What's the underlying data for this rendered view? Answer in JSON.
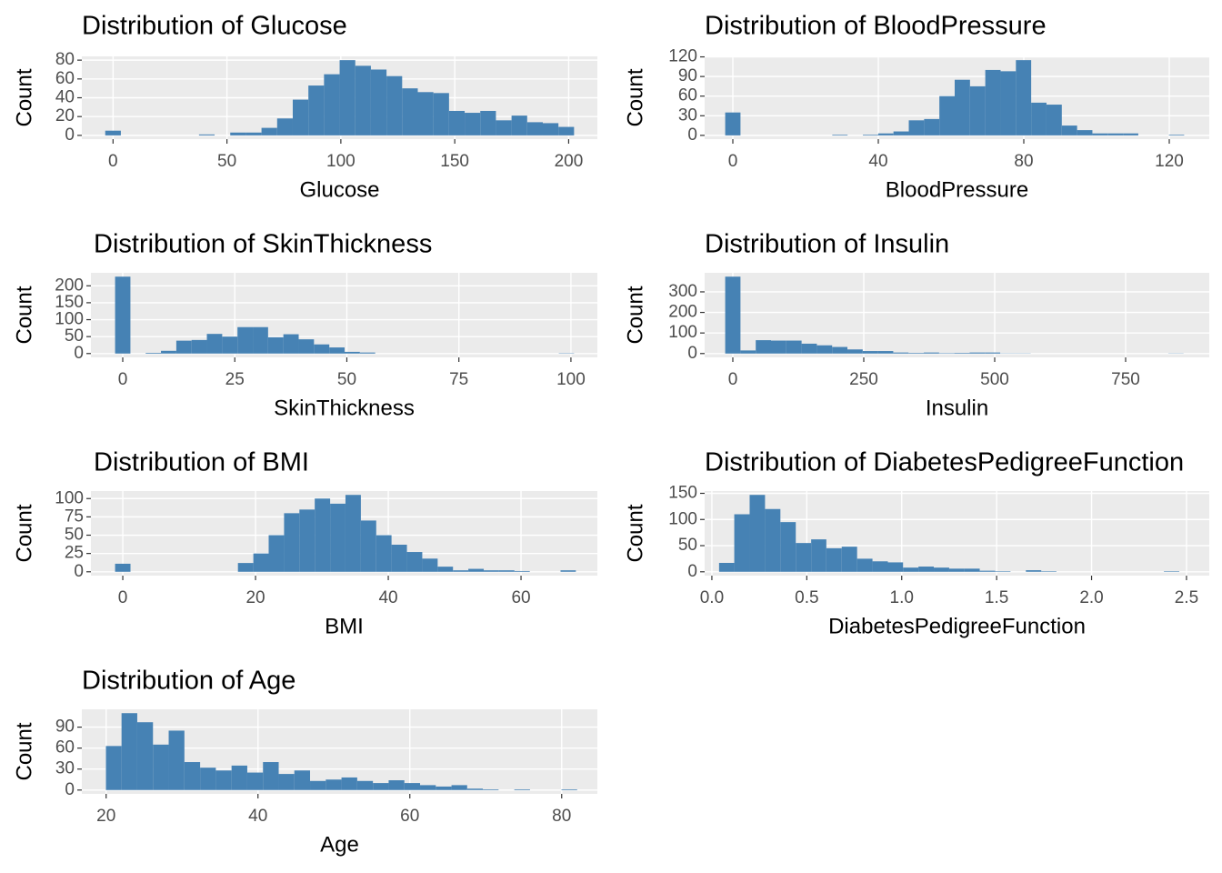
{
  "chart_data": [
    {
      "type": "histogram",
      "title": "Distribution of Glucose",
      "xlabel": "Glucose",
      "ylabel": "Count",
      "color": "#4682b4",
      "grid": true,
      "bins": [
        -3.43,
        3.43,
        10.29,
        17.15,
        24.01,
        30.87,
        37.73,
        44.59,
        51.45,
        58.31,
        65.17,
        72.03,
        78.89,
        85.75,
        92.61,
        99.47,
        106.33,
        113.19,
        120.05,
        126.91,
        133.77,
        140.63,
        147.49,
        154.35,
        161.21,
        168.07,
        174.93,
        181.79,
        188.65,
        195.51,
        202.37
      ],
      "values": [
        5,
        0,
        0,
        0,
        0,
        0,
        1,
        0,
        3,
        3,
        8,
        18,
        38,
        53,
        65,
        80,
        74,
        70,
        63,
        50,
        46,
        45,
        26,
        24,
        26,
        16,
        21,
        14,
        13,
        9
      ],
      "xlim": [
        -13.7,
        212.6
      ],
      "xticks": [
        0,
        50,
        100,
        150,
        200
      ],
      "ylim": [
        -4,
        84
      ],
      "yticks": [
        0,
        20,
        40,
        60,
        80
      ]
    },
    {
      "type": "histogram",
      "title": "Distribution of BloodPressure",
      "xlabel": "BloodPressure",
      "ylabel": "Count",
      "color": "#4682b4",
      "grid": true,
      "bins": [
        -2.1,
        2.1,
        6.31,
        10.52,
        14.72,
        18.93,
        23.14,
        27.34,
        31.55,
        35.76,
        39.97,
        44.17,
        48.38,
        52.59,
        56.79,
        61.0,
        65.21,
        69.41,
        73.62,
        77.83,
        82.03,
        86.24,
        90.45,
        94.66,
        98.86,
        103.07,
        107.28,
        111.48,
        115.69,
        119.9,
        124.1
      ],
      "values": [
        35,
        0,
        0,
        0,
        0,
        0,
        0,
        1,
        0,
        1,
        3,
        6,
        23,
        25,
        60,
        85,
        75,
        100,
        98,
        115,
        50,
        47,
        15,
        8,
        3,
        3,
        3,
        0,
        0,
        1
      ],
      "xlim": [
        -7.75,
        131
      ],
      "xticks": [
        0,
        40,
        80,
        120
      ],
      "ylim": [
        -5.75,
        120.75
      ],
      "yticks": [
        0,
        30,
        60,
        90,
        120
      ]
    },
    {
      "type": "histogram",
      "title": "Distribution of SkinThickness",
      "xlabel": "SkinThickness",
      "ylabel": "Count",
      "color": "#4682b4",
      "grid": true,
      "bins": [
        -1.71,
        1.71,
        5.12,
        8.53,
        11.95,
        15.36,
        18.77,
        22.19,
        25.6,
        29.02,
        32.43,
        35.84,
        39.26,
        42.67,
        46.09,
        49.5,
        52.91,
        56.33,
        59.74,
        63.16,
        66.57,
        69.98,
        73.4,
        76.81,
        80.22,
        83.64,
        87.05,
        90.47,
        93.88,
        97.29,
        100.71
      ],
      "values": [
        227,
        0,
        2,
        8,
        38,
        40,
        58,
        50,
        78,
        78,
        48,
        57,
        42,
        27,
        18,
        5,
        3,
        0,
        0,
        0,
        0,
        0,
        0,
        0,
        0,
        0,
        0,
        0,
        0,
        1
      ],
      "xlim": [
        -7.1,
        105.9
      ],
      "xticks": [
        0,
        25,
        50,
        75,
        100
      ],
      "ylim": [
        -11.35,
        238.35
      ],
      "yticks": [
        0,
        50,
        100,
        150,
        200
      ]
    },
    {
      "type": "histogram",
      "title": "Distribution of Insulin",
      "xlabel": "Insulin",
      "ylabel": "Count",
      "color": "#4682b4",
      "grid": true,
      "bins": [
        -14.59,
        14.59,
        43.76,
        72.93,
        102.1,
        131.28,
        160.45,
        189.62,
        218.79,
        247.97,
        277.14,
        306.31,
        335.48,
        364.66,
        393.83,
        423.0,
        452.17,
        481.34,
        510.52,
        539.69,
        568.86,
        598.03,
        627.21,
        656.38,
        685.55,
        714.72,
        743.9,
        773.07,
        802.24,
        831.41,
        860.59
      ],
      "values": [
        374,
        15,
        65,
        63,
        63,
        48,
        40,
        32,
        20,
        12,
        12,
        5,
        3,
        5,
        2,
        3,
        5,
        5,
        1,
        1,
        0,
        0,
        0,
        0,
        0,
        0,
        0,
        0,
        0,
        1
      ],
      "xlim": [
        -53.8,
        909.7
      ],
      "xticks": [
        0,
        250,
        500,
        750
      ],
      "ylim": [
        -18.7,
        392.7
      ],
      "yticks": [
        0,
        100,
        200,
        300
      ]
    },
    {
      "type": "histogram",
      "title": "Distribution of BMI",
      "xlabel": "BMI",
      "ylabel": "Count",
      "color": "#4682b4",
      "grid": true,
      "bins": [
        -1.16,
        1.16,
        3.47,
        5.78,
        8.1,
        10.41,
        12.73,
        15.04,
        17.35,
        19.67,
        21.98,
        24.3,
        26.61,
        28.92,
        31.24,
        33.55,
        35.87,
        38.18,
        40.49,
        42.81,
        45.12,
        47.44,
        49.75,
        52.06,
        54.38,
        56.69,
        59.01,
        61.32,
        63.63,
        65.95,
        68.26
      ],
      "values": [
        11,
        0,
        0,
        0,
        0,
        0,
        0,
        0,
        12,
        25,
        50,
        80,
        85,
        100,
        93,
        105,
        70,
        50,
        37,
        27,
        18,
        7,
        2,
        4,
        2,
        2,
        1,
        0,
        0,
        2
      ],
      "xlim": [
        -4.8,
        71.5
      ],
      "xticks": [
        0,
        20,
        40,
        60
      ],
      "ylim": [
        -5.25,
        110.25
      ],
      "yticks": [
        0,
        25,
        50,
        75,
        100
      ]
    },
    {
      "type": "histogram",
      "title": "Distribution of DiabetesPedigreeFunction",
      "xlabel": "DiabetesPedigreeFunction",
      "ylabel": "Count",
      "color": "#4682b4",
      "grid": true,
      "bins": [
        0.038,
        0.118,
        0.199,
        0.28,
        0.361,
        0.442,
        0.523,
        0.603,
        0.684,
        0.765,
        0.846,
        0.927,
        1.007,
        1.088,
        1.169,
        1.25,
        1.331,
        1.411,
        1.492,
        1.573,
        1.654,
        1.735,
        1.815,
        1.896,
        1.977,
        2.058,
        2.139,
        2.219,
        2.3,
        2.381,
        2.462
      ],
      "values": [
        17,
        110,
        147,
        120,
        95,
        55,
        62,
        45,
        48,
        25,
        20,
        18,
        8,
        10,
        8,
        6,
        6,
        2,
        1,
        0,
        3,
        1,
        0,
        0,
        0,
        0,
        0,
        0,
        0,
        1
      ],
      "xlim": [
        -0.038,
        2.62
      ],
      "xticks": [
        {
          "value": 0,
          "label": "0.0"
        },
        {
          "value": 0.5,
          "label": "0.5"
        },
        {
          "value": 1,
          "label": "1.0"
        },
        {
          "value": 1.5,
          "label": "1.5"
        },
        {
          "value": 2,
          "label": "2.0"
        },
        {
          "value": 2.5,
          "label": "2.5"
        }
      ],
      "ylim": [
        -7.35,
        154.35
      ],
      "yticks": [
        0,
        50,
        100,
        150
      ]
    },
    {
      "type": "histogram",
      "title": "Distribution of Age",
      "xlabel": "Age",
      "ylabel": "Count",
      "color": "#4682b4",
      "grid": true,
      "bins": [
        19.97,
        22.03,
        24.1,
        26.17,
        28.24,
        30.31,
        32.38,
        34.45,
        36.52,
        38.59,
        40.66,
        42.73,
        44.79,
        46.86,
        48.93,
        51.0,
        53.07,
        55.14,
        57.21,
        59.28,
        61.35,
        63.42,
        65.49,
        67.55,
        69.62,
        71.69,
        73.76,
        75.83,
        77.9,
        79.97,
        82.04
      ],
      "values": [
        63,
        110,
        97,
        65,
        85,
        40,
        32,
        28,
        35,
        25,
        40,
        23,
        28,
        13,
        15,
        18,
        13,
        10,
        14,
        10,
        7,
        5,
        7,
        2,
        1,
        0,
        1,
        0,
        0,
        1
      ],
      "xlim": [
        16.8,
        84.7
      ],
      "xticks": [
        20,
        40,
        60,
        80
      ],
      "ylim": [
        -5.5,
        115.5
      ],
      "yticks": [
        0,
        30,
        60,
        90
      ]
    }
  ]
}
